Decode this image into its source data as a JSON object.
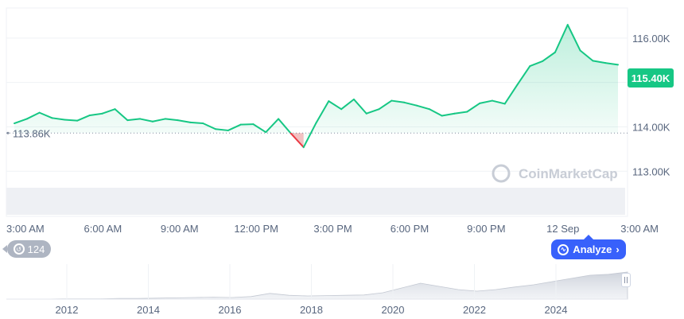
{
  "chart_data": {
    "type": "line",
    "x": [
      "3:00 AM",
      "",
      "",
      "",
      "",
      "",
      "6:00 AM",
      "",
      "",
      "",
      "",
      "",
      "9:00 AM",
      "",
      "",
      "",
      "",
      "",
      "12:00 PM",
      "",
      "",
      "",
      "",
      "",
      "3:00 PM",
      "",
      "",
      "",
      "",
      "",
      "6:00 PM",
      "",
      "",
      "",
      "",
      "",
      "9:00 PM",
      "",
      "",
      "",
      "",
      "",
      "12 Sep",
      "",
      "",
      "",
      "",
      "",
      "3:00 AM"
    ],
    "y": [
      114080,
      114180,
      114320,
      114200,
      114160,
      114140,
      114260,
      114300,
      114400,
      114150,
      114180,
      114120,
      114180,
      114150,
      114100,
      114080,
      113950,
      113920,
      114050,
      114060,
      113880,
      114180,
      113850,
      113540,
      114090,
      114580,
      114400,
      114620,
      114300,
      114400,
      114590,
      114550,
      114480,
      114400,
      114250,
      114300,
      114340,
      114530,
      114590,
      114520,
      114950,
      115370,
      115480,
      115680,
      116300,
      115720,
      115490,
      115440,
      115400
    ],
    "x_ticks": [
      "3:00 AM",
      "6:00 AM",
      "9:00 AM",
      "12:00 PM",
      "3:00 PM",
      "6:00 PM",
      "9:00 PM",
      "12 Sep",
      "3:00 AM"
    ],
    "y_ticks": [
      "116.00K",
      "115.00K",
      "114.00K",
      "113.00K"
    ],
    "ylim": [
      112700,
      116500
    ],
    "reference_line": {
      "value": 113860,
      "label": "113.86K"
    },
    "last_price_label": "115.40K",
    "colors": {
      "up": "#16c784",
      "down": "#ea3943",
      "up_fill": "#16c784",
      "down_fill": "#ea3943",
      "grid": "#eff2f5",
      "ref": "#808a9d"
    },
    "grid": true,
    "watermark": "CoinMarketCap",
    "overview": {
      "x_ticks": [
        "2012",
        "2014",
        "2016",
        "2018",
        "2020",
        "2022",
        "2024"
      ],
      "y": [
        0,
        0,
        0,
        0.01,
        0.01,
        0.01,
        0.02,
        0.02,
        0.03,
        0.04,
        0.05,
        0.06,
        0.05,
        0.08,
        0.18,
        0.12,
        0.1,
        0.11,
        0.12,
        0.13,
        0.2,
        0.35,
        0.5,
        0.4,
        0.3,
        0.25,
        0.3,
        0.38,
        0.45,
        0.55,
        0.65,
        0.75,
        0.78,
        0.85
      ]
    }
  },
  "ui": {
    "history_count": "124",
    "analyze_label": "Analyze",
    "analyze_chevron": "›"
  }
}
